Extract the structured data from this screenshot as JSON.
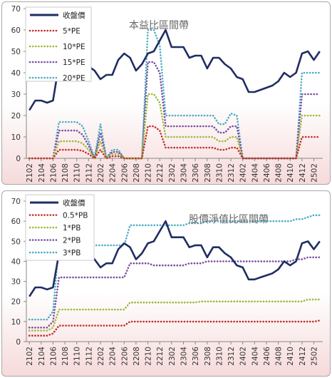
{
  "colors": {
    "price": "#1f2d63",
    "m1": "#c0302b",
    "m2": "#9bbb3a",
    "m3": "#7a4ea0",
    "m4": "#4bacc6"
  },
  "x_tick_labels": [
    "2102",
    "2104",
    "2106",
    "2108",
    "2110",
    "2112",
    "2202",
    "2204",
    "2206",
    "2208",
    "2210",
    "2212",
    "2302",
    "2304",
    "2306",
    "2308",
    "2310",
    "2312",
    "2402",
    "2404",
    "2406",
    "2408",
    "2410",
    "2412",
    "2502"
  ],
  "chart_data": [
    {
      "type": "line",
      "title": "本益比區間帶",
      "ylim": [
        0,
        70
      ],
      "yticks": [
        0,
        10,
        20,
        30,
        40,
        50,
        60,
        70
      ],
      "grid": false,
      "legend_position": "top-left",
      "series": [
        {
          "name": "收盤價",
          "values": [
            22.5,
            27,
            27,
            26,
            27,
            44,
            44,
            44,
            44,
            45,
            43,
            41,
            37,
            39,
            39,
            46,
            49,
            47,
            41,
            44,
            49,
            50,
            55,
            60,
            52,
            52,
            52,
            47,
            48,
            48,
            42,
            47,
            47,
            44,
            42,
            38,
            37,
            31,
            31,
            32,
            33,
            34,
            36,
            40,
            38,
            40,
            49,
            50,
            46,
            50
          ]
        },
        {
          "name": "5*PE",
          "values": [
            0,
            0,
            0,
            0,
            0,
            4,
            4,
            4,
            4,
            3.5,
            2,
            0,
            4,
            0,
            1,
            1,
            0,
            0,
            0,
            0,
            15,
            15,
            13,
            5,
            5,
            5,
            5,
            5,
            5,
            5,
            5,
            5,
            4,
            4,
            5,
            5,
            0,
            0,
            0,
            0,
            0,
            0,
            0,
            0,
            0,
            0,
            10,
            10,
            10,
            10
          ]
        },
        {
          "name": "10*PE",
          "values": [
            0,
            0,
            0,
            0,
            0,
            8,
            8,
            8,
            8,
            7,
            4,
            0,
            8,
            0,
            2,
            2,
            0,
            0,
            0,
            0,
            30,
            30,
            26,
            10,
            10,
            10,
            10,
            10,
            10,
            10,
            10,
            10,
            8,
            8,
            10,
            10,
            0,
            0,
            0,
            0,
            0,
            0,
            0,
            0,
            0,
            0,
            20,
            20,
            20,
            20
          ]
        },
        {
          "name": "15*PE",
          "values": [
            0,
            0,
            0,
            0,
            0,
            13,
            13,
            13,
            13,
            11,
            6,
            0,
            12,
            0,
            3,
            3,
            0,
            0,
            0,
            0,
            45,
            45,
            40,
            15,
            15,
            15,
            15,
            15,
            15,
            15,
            15,
            15,
            12,
            12,
            15,
            15,
            0,
            0,
            0,
            0,
            0,
            0,
            0,
            0,
            0,
            0,
            30,
            30,
            30,
            30
          ]
        },
        {
          "name": "20*PE",
          "values": [
            0,
            0,
            0,
            0,
            0,
            17,
            17,
            17,
            17,
            15,
            8,
            0,
            16,
            0,
            4,
            4,
            0,
            0,
            0,
            0,
            60,
            60,
            53,
            20,
            20,
            20,
            20,
            20,
            20,
            20,
            20,
            20,
            16,
            16,
            21,
            20,
            0,
            0,
            0,
            0,
            0,
            0,
            0,
            0,
            0,
            0,
            40,
            40,
            40,
            40
          ]
        }
      ]
    },
    {
      "type": "line",
      "title": "股價淨值比區間帶",
      "ylim": [
        0,
        70
      ],
      "yticks": [
        0,
        10,
        20,
        30,
        40,
        50,
        60,
        70
      ],
      "grid": false,
      "legend_position": "top-left",
      "series": [
        {
          "name": "收盤價",
          "values": [
            22.5,
            27,
            27,
            26,
            27,
            44,
            44,
            44,
            44,
            45,
            43,
            41,
            37,
            39,
            39,
            46,
            49,
            47,
            41,
            44,
            49,
            50,
            55,
            60,
            52,
            52,
            52,
            47,
            48,
            48,
            42,
            47,
            47,
            44,
            42,
            38,
            37,
            31,
            31,
            32,
            33,
            34,
            36,
            40,
            38,
            40,
            49,
            50,
            46,
            50
          ]
        },
        {
          "name": "0.5*PB",
          "values": [
            3,
            3,
            3,
            3,
            4,
            8,
            8,
            8,
            8,
            8,
            8,
            8,
            8,
            8,
            8,
            8,
            8,
            10,
            10,
            10,
            10,
            10,
            10,
            10,
            10,
            10,
            10,
            10,
            10,
            10,
            10,
            10,
            10,
            10,
            10,
            10,
            10,
            10,
            10,
            10,
            10,
            10,
            10,
            10,
            10,
            10,
            10,
            10,
            10,
            10.5
          ]
        },
        {
          "name": "1*PB",
          "values": [
            5.5,
            5.5,
            5.5,
            5.5,
            7,
            16,
            16,
            16,
            16,
            16,
            16,
            16,
            16,
            16,
            16,
            16,
            16,
            19.5,
            19.5,
            19.5,
            19.5,
            19.5,
            19.5,
            19.5,
            19.5,
            19.5,
            19.5,
            19.5,
            19.5,
            20,
            20,
            20,
            20,
            20,
            20,
            20,
            20,
            20,
            20,
            20,
            20,
            20,
            20,
            20,
            20,
            20,
            20,
            21,
            21,
            21
          ]
        },
        {
          "name": "2*PB",
          "values": [
            7,
            7,
            7,
            7,
            10,
            32,
            32,
            32,
            32,
            32,
            32,
            32,
            32,
            32,
            32,
            32,
            32,
            39,
            39,
            39,
            39,
            38,
            38,
            38,
            38,
            38,
            38,
            39,
            39,
            39,
            40,
            40,
            40,
            40,
            40,
            40,
            40,
            40,
            40,
            40,
            40,
            40,
            40,
            40,
            40,
            41,
            41,
            42,
            42,
            42
          ]
        },
        {
          "name": "3*PB",
          "values": [
            11,
            11,
            11,
            11,
            15,
            48,
            48,
            48,
            48,
            48,
            48,
            48,
            48,
            48,
            48,
            48,
            48,
            58,
            58,
            58,
            58,
            58,
            58,
            58,
            58,
            58,
            58,
            59,
            59,
            59,
            60,
            60,
            60,
            60,
            60,
            60,
            60,
            60,
            60,
            60,
            60,
            60,
            60,
            60,
            60,
            61,
            61,
            62,
            63,
            63
          ]
        }
      ]
    }
  ]
}
